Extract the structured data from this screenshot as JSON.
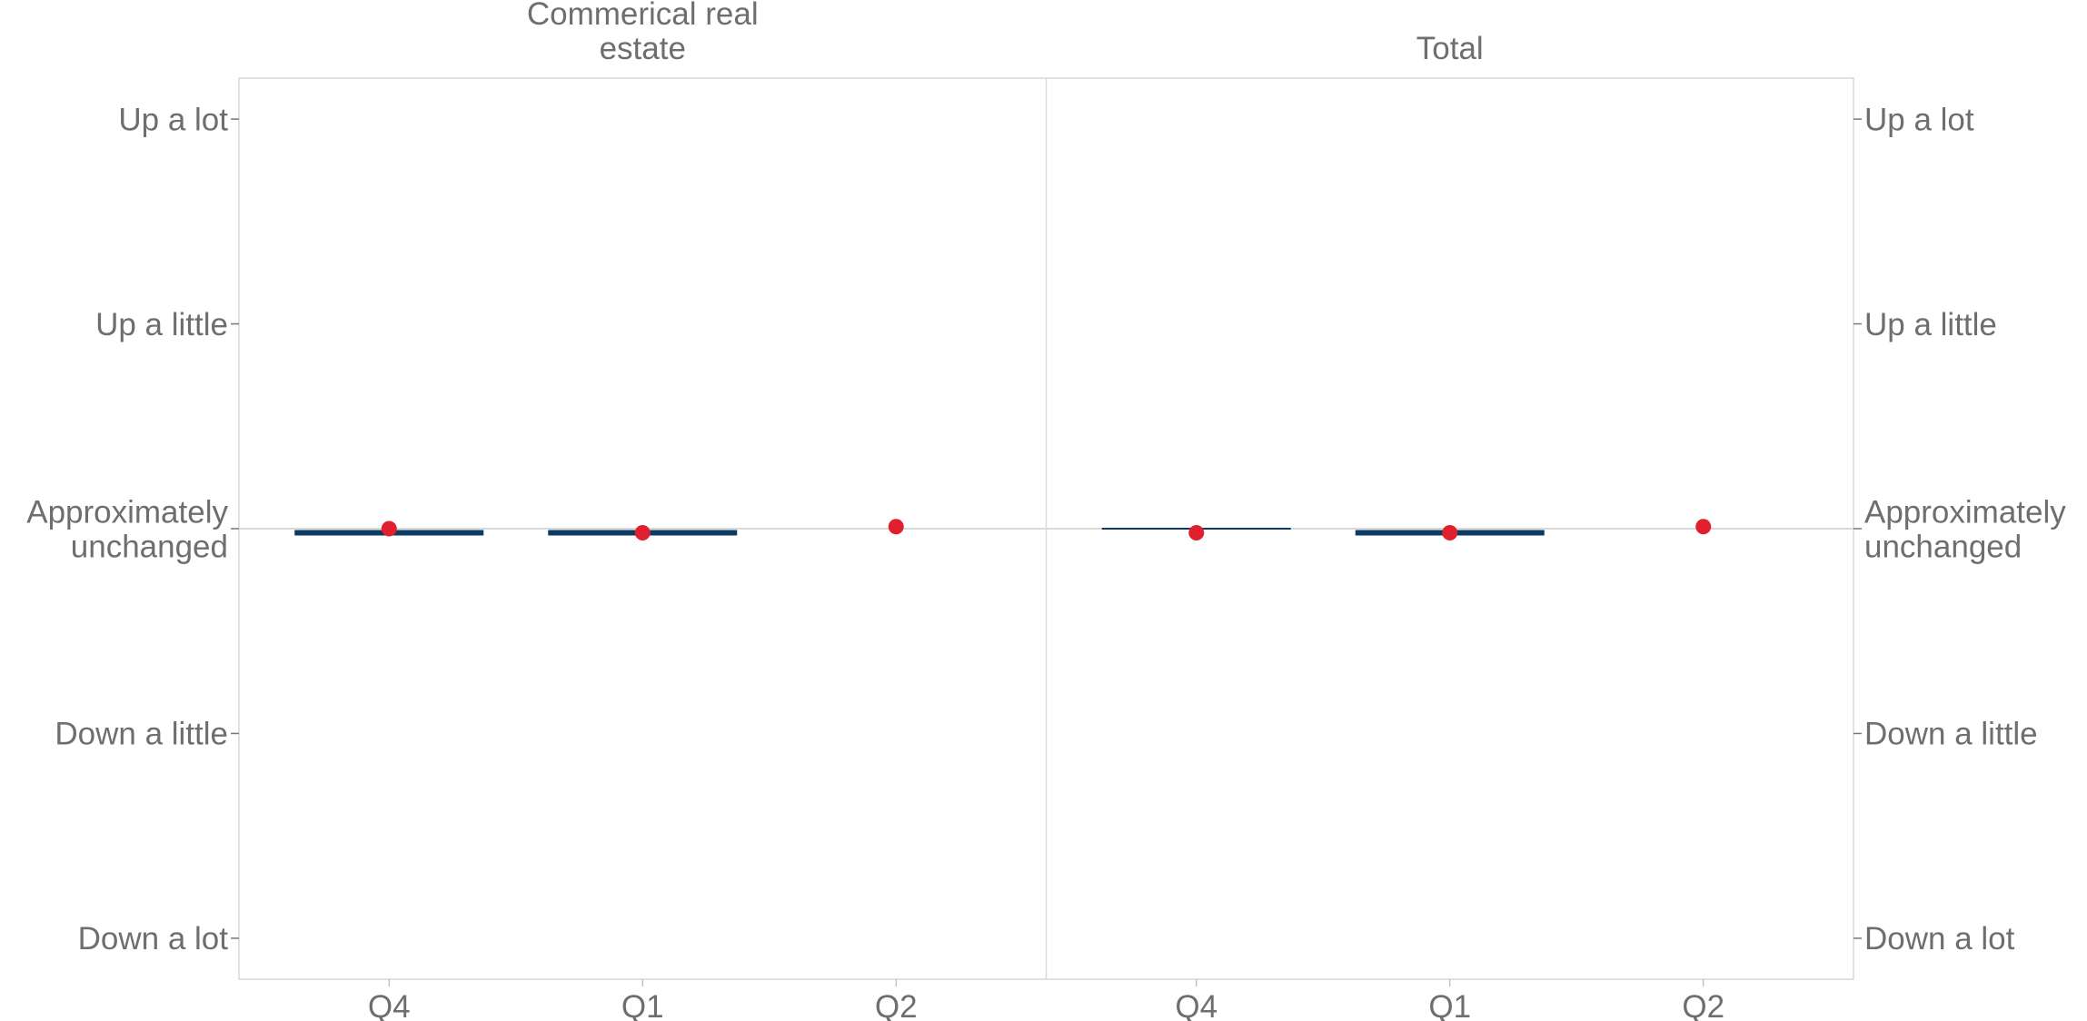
{
  "chart_data": {
    "type": "bar",
    "y_levels": [
      "Down a lot",
      "Down a little",
      "Approximately unchanged",
      "Up a little",
      "Up a lot"
    ],
    "y_tick_labels": [
      {
        "value": 2,
        "lines": [
          "Up a lot"
        ]
      },
      {
        "value": 1,
        "lines": [
          "Up a little"
        ]
      },
      {
        "value": 0,
        "lines": [
          "Approximately",
          "unchanged"
        ]
      },
      {
        "value": -1,
        "lines": [
          "Down a little"
        ]
      },
      {
        "value": -2,
        "lines": [
          "Down a lot"
        ]
      }
    ],
    "ylim": [
      -2.2,
      2.2
    ],
    "categories": [
      "Q4",
      "Q1",
      "Q2"
    ],
    "panels": [
      {
        "title_lines": [
          "Commerical real",
          "estate"
        ],
        "bar_values": [
          -0.02,
          -0.02,
          null
        ],
        "bar_weights": [
          "thick",
          "thick",
          null
        ],
        "point_values": [
          0.0,
          -0.02,
          0.01
        ]
      },
      {
        "title_lines": [
          "Total"
        ],
        "bar_values": [
          0.0,
          -0.02,
          null
        ],
        "bar_weights": [
          "thin",
          "thick",
          null
        ],
        "point_values": [
          -0.02,
          -0.02,
          0.01
        ]
      }
    ],
    "colors": {
      "bar": "#0b3a63",
      "point": "#e0202e",
      "zero_line": "#d9d9d9",
      "frame": "#d9d9d9",
      "text": "#6e6e6e"
    },
    "grid": false
  }
}
